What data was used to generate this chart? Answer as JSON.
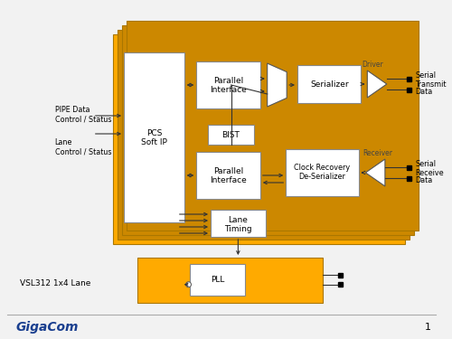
{
  "bg_color": "#f2f2f2",
  "orange": "#FFAA00",
  "orange_shadow": "#CC8800",
  "white": "#FFFFFF",
  "black": "#000000",
  "blue": "#1A3F8F",
  "gray_edge": "#888888",
  "dark_edge": "#555555",
  "title_text": "VSL312 1x4 Lane",
  "footer_brand": "GigaCom",
  "page_num": "1"
}
